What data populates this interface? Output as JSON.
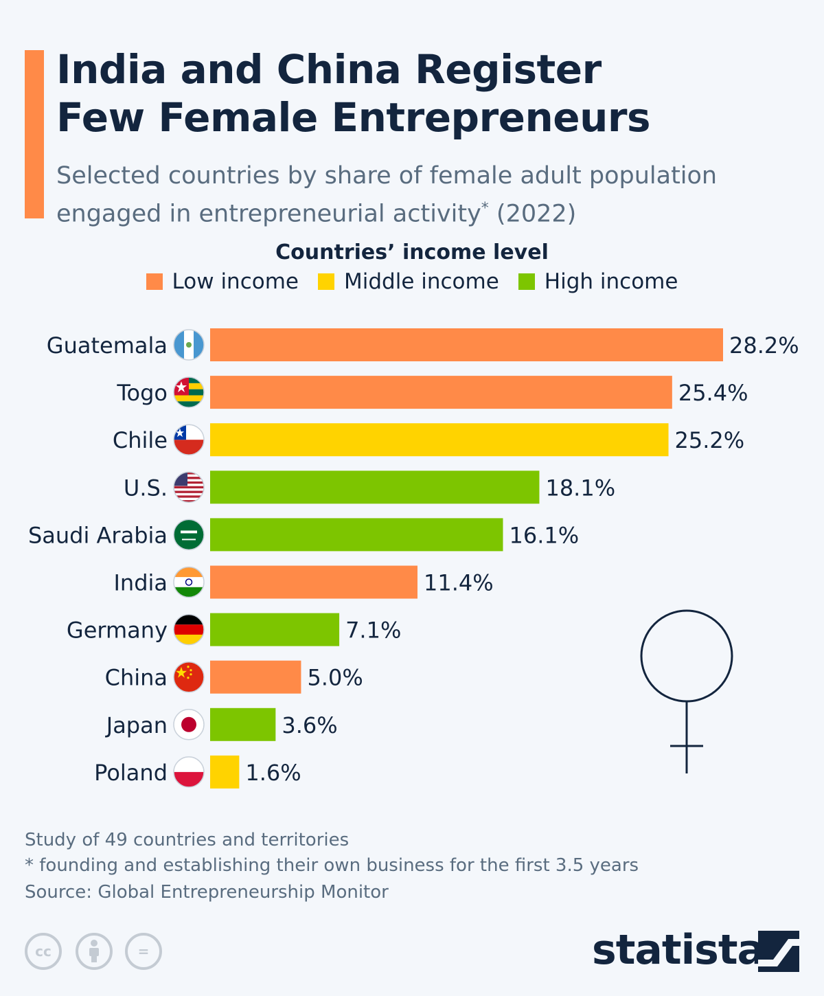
{
  "header": {
    "title_line1": "India and China Register",
    "title_line2": "Few Female Entrepreneurs",
    "subtitle_line1": "Selected countries by share of female adult population",
    "subtitle_line2a": "engaged in entrepreneurial activity",
    "subtitle_sup": "*",
    "subtitle_line2b": " (2022)",
    "accent_color": "#ff8a48"
  },
  "legend": {
    "title": "Countries’ income level",
    "items": [
      {
        "label": "Low income",
        "color": "#ff8a48"
      },
      {
        "label": "Middle income",
        "color": "#ffd300"
      },
      {
        "label": "High income",
        "color": "#7dc500"
      }
    ]
  },
  "chart_data": {
    "type": "bar",
    "orientation": "horizontal",
    "categories": [
      "Guatemala",
      "Togo",
      "Chile",
      "U.S.",
      "Saudi Arabia",
      "India",
      "Germany",
      "China",
      "Japan",
      "Poland"
    ],
    "values": [
      28.2,
      25.4,
      25.2,
      18.1,
      16.1,
      11.4,
      7.1,
      5.0,
      3.6,
      1.6
    ],
    "value_labels": [
      "28.2%",
      "25.4%",
      "25.2%",
      "18.1%",
      "16.1%",
      "11.4%",
      "7.1%",
      "5.0%",
      "3.6%",
      "1.6%"
    ],
    "income_level": [
      "Low income",
      "Low income",
      "Middle income",
      "High income",
      "High income",
      "Low income",
      "High income",
      "Low income",
      "High income",
      "Middle income"
    ],
    "flag_icons": [
      "guatemala-flag-icon",
      "togo-flag-icon",
      "chile-flag-icon",
      "us-flag-icon",
      "saudi-arabia-flag-icon",
      "india-flag-icon",
      "germany-flag-icon",
      "china-flag-icon",
      "japan-flag-icon",
      "poland-flag-icon"
    ],
    "xlim": [
      0,
      28.2
    ],
    "grid": false,
    "legend_position": "top-center"
  },
  "decoration": {
    "icon": "female-symbol-icon"
  },
  "footer": {
    "note1": "Study of 49 countries and territories",
    "note2": "* founding and establishing their own business for the first 3.5 years",
    "source": "Source: Global Entrepreneurship Monitor",
    "brand": "statista",
    "cc_label": "cc",
    "equals_label": "="
  }
}
